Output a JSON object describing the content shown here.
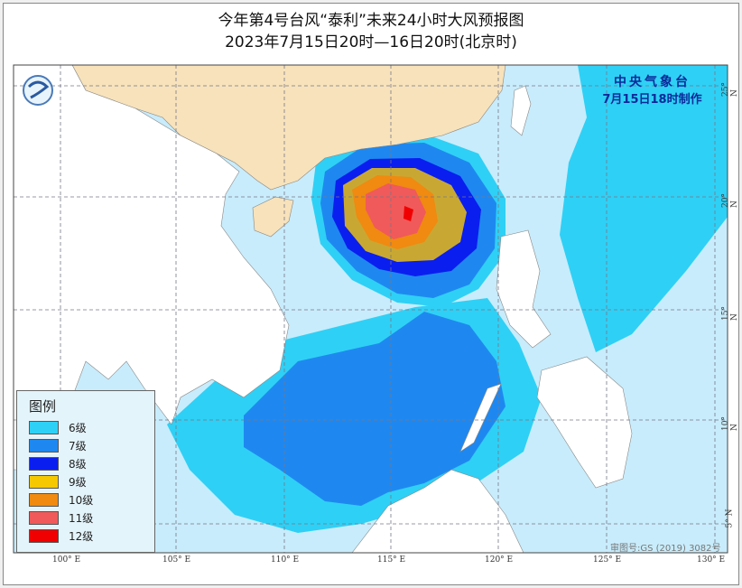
{
  "title": "今年第4号台风“泰利”未来24小时大风预报图",
  "subtitle": "2023年7月15日20时—16日20时(北京时)",
  "agency": {
    "name": "中央气象台",
    "issued": "7月15日18时制作"
  },
  "legend": {
    "title": "图例",
    "items": [
      {
        "label": "6级",
        "color": "#2fd0f5"
      },
      {
        "label": "7级",
        "color": "#1e88f0"
      },
      {
        "label": "8级",
        "color": "#0a1ef0"
      },
      {
        "label": "9级",
        "color": "#f5c800"
      },
      {
        "label": "10级",
        "color": "#f08a10"
      },
      {
        "label": "11级",
        "color": "#f05a5a"
      },
      {
        "label": "12级",
        "color": "#f00000"
      }
    ]
  },
  "lon_ticks": [
    "100° E",
    "105° E",
    "110° E",
    "115° E",
    "120° E",
    "125° E",
    "130° E"
  ],
  "lat_ticks": [
    "25° N",
    "20° N",
    "15° N",
    "10° N",
    "5° N"
  ],
  "approval": "审图号:GS (2019) 3082号",
  "colors": {
    "sea": "#c8ecfb",
    "china_land": "#f7e2bb",
    "other_land": "#ffffff"
  }
}
